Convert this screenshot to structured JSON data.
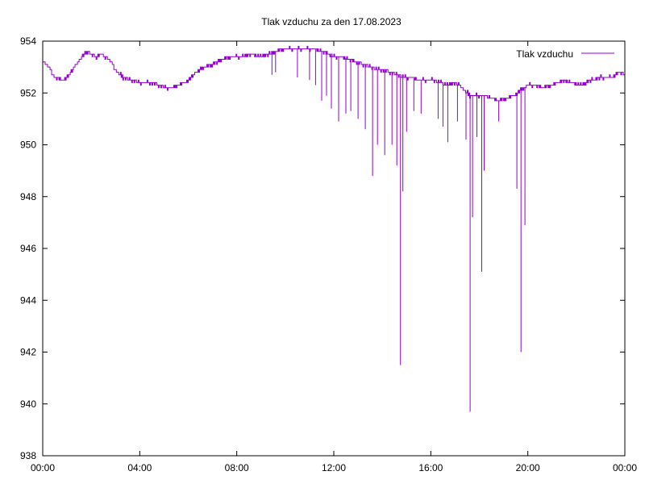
{
  "chart_data": {
    "type": "line",
    "title": "Tlak vzduchu za den 17.08.2023",
    "xlabel": "",
    "ylabel": "",
    "x_ticks": [
      "00:00",
      "04:00",
      "08:00",
      "12:00",
      "16:00",
      "20:00",
      "00:00"
    ],
    "x_tick_hours": [
      0,
      4,
      8,
      12,
      16,
      20,
      24
    ],
    "xlim": [
      0,
      24
    ],
    "y_ticks": [
      "938",
      "940",
      "942",
      "944",
      "946",
      "948",
      "950",
      "952",
      "954"
    ],
    "y_tick_values": [
      938,
      940,
      942,
      944,
      946,
      948,
      950,
      952,
      954
    ],
    "ylim": [
      938,
      954
    ],
    "grid": false,
    "legend_position": "top-right",
    "series": [
      {
        "name": "Tlak vzduchu",
        "color": "#9400d3",
        "baseline": {
          "x": [
            0.0,
            0.3,
            0.5,
            0.8,
            1.0,
            1.3,
            1.6,
            1.8,
            2.0,
            2.2,
            2.4,
            2.7,
            3.0,
            3.3,
            3.6,
            4.0,
            4.4,
            4.8,
            5.0,
            5.3,
            5.6,
            6.0,
            6.3,
            6.7,
            7.0,
            7.4,
            7.8,
            8.2,
            8.6,
            9.0,
            9.3,
            9.6,
            10.0,
            10.3,
            10.6,
            10.9,
            11.2,
            11.5,
            11.8,
            12.0,
            12.3,
            12.6,
            12.9,
            13.2,
            13.5,
            13.8,
            14.0,
            14.3,
            14.6,
            14.9,
            15.2,
            15.5,
            15.8,
            16.1,
            16.4,
            16.7,
            17.0,
            17.3,
            17.6,
            17.9,
            18.2,
            18.5,
            18.8,
            19.1,
            19.4,
            19.7,
            20.0,
            20.3,
            20.6,
            21.0,
            21.4,
            21.8,
            22.2,
            22.6,
            23.0,
            23.4,
            23.8,
            24.0
          ],
          "y": [
            953.3,
            952.9,
            952.6,
            952.5,
            952.6,
            953.0,
            953.4,
            953.6,
            953.5,
            953.4,
            953.5,
            953.3,
            952.9,
            952.6,
            952.5,
            952.4,
            952.4,
            952.3,
            952.2,
            952.2,
            952.3,
            952.5,
            952.8,
            953.0,
            953.1,
            953.3,
            953.4,
            953.4,
            953.5,
            953.4,
            953.5,
            953.6,
            953.7,
            953.7,
            953.7,
            953.7,
            953.7,
            953.6,
            953.5,
            953.4,
            953.4,
            953.3,
            953.2,
            953.1,
            953.0,
            952.9,
            952.9,
            952.8,
            952.7,
            952.6,
            952.6,
            952.5,
            952.5,
            952.5,
            952.4,
            952.3,
            952.4,
            952.2,
            951.9,
            951.9,
            951.9,
            951.8,
            951.7,
            951.8,
            951.9,
            952.1,
            952.3,
            952.3,
            952.2,
            952.3,
            952.5,
            952.4,
            952.3,
            952.5,
            952.6,
            952.6,
            952.8,
            952.7
          ]
        },
        "spikes": {
          "x": [
            9.45,
            9.6,
            10.5,
            11.0,
            11.25,
            11.5,
            11.7,
            11.9,
            12.2,
            12.5,
            12.7,
            13.0,
            13.3,
            13.6,
            13.8,
            14.1,
            14.4,
            14.6,
            14.75,
            14.85,
            15.0,
            15.3,
            15.6,
            16.3,
            16.5,
            16.7,
            17.1,
            17.45,
            17.62,
            17.72,
            17.9,
            18.1,
            18.2,
            18.8,
            19.55,
            19.72,
            19.88
          ],
          "y": [
            952.7,
            952.8,
            952.6,
            952.5,
            952.3,
            951.7,
            951.9,
            951.4,
            950.9,
            951.2,
            951.3,
            951.0,
            950.6,
            948.8,
            950.0,
            949.6,
            950.0,
            949.2,
            941.5,
            948.2,
            950.5,
            951.3,
            951.2,
            951.0,
            950.7,
            950.1,
            950.9,
            950.2,
            939.7,
            947.2,
            950.3,
            945.1,
            949.0,
            950.9,
            948.3,
            942.0,
            946.9
          ]
        }
      }
    ]
  }
}
